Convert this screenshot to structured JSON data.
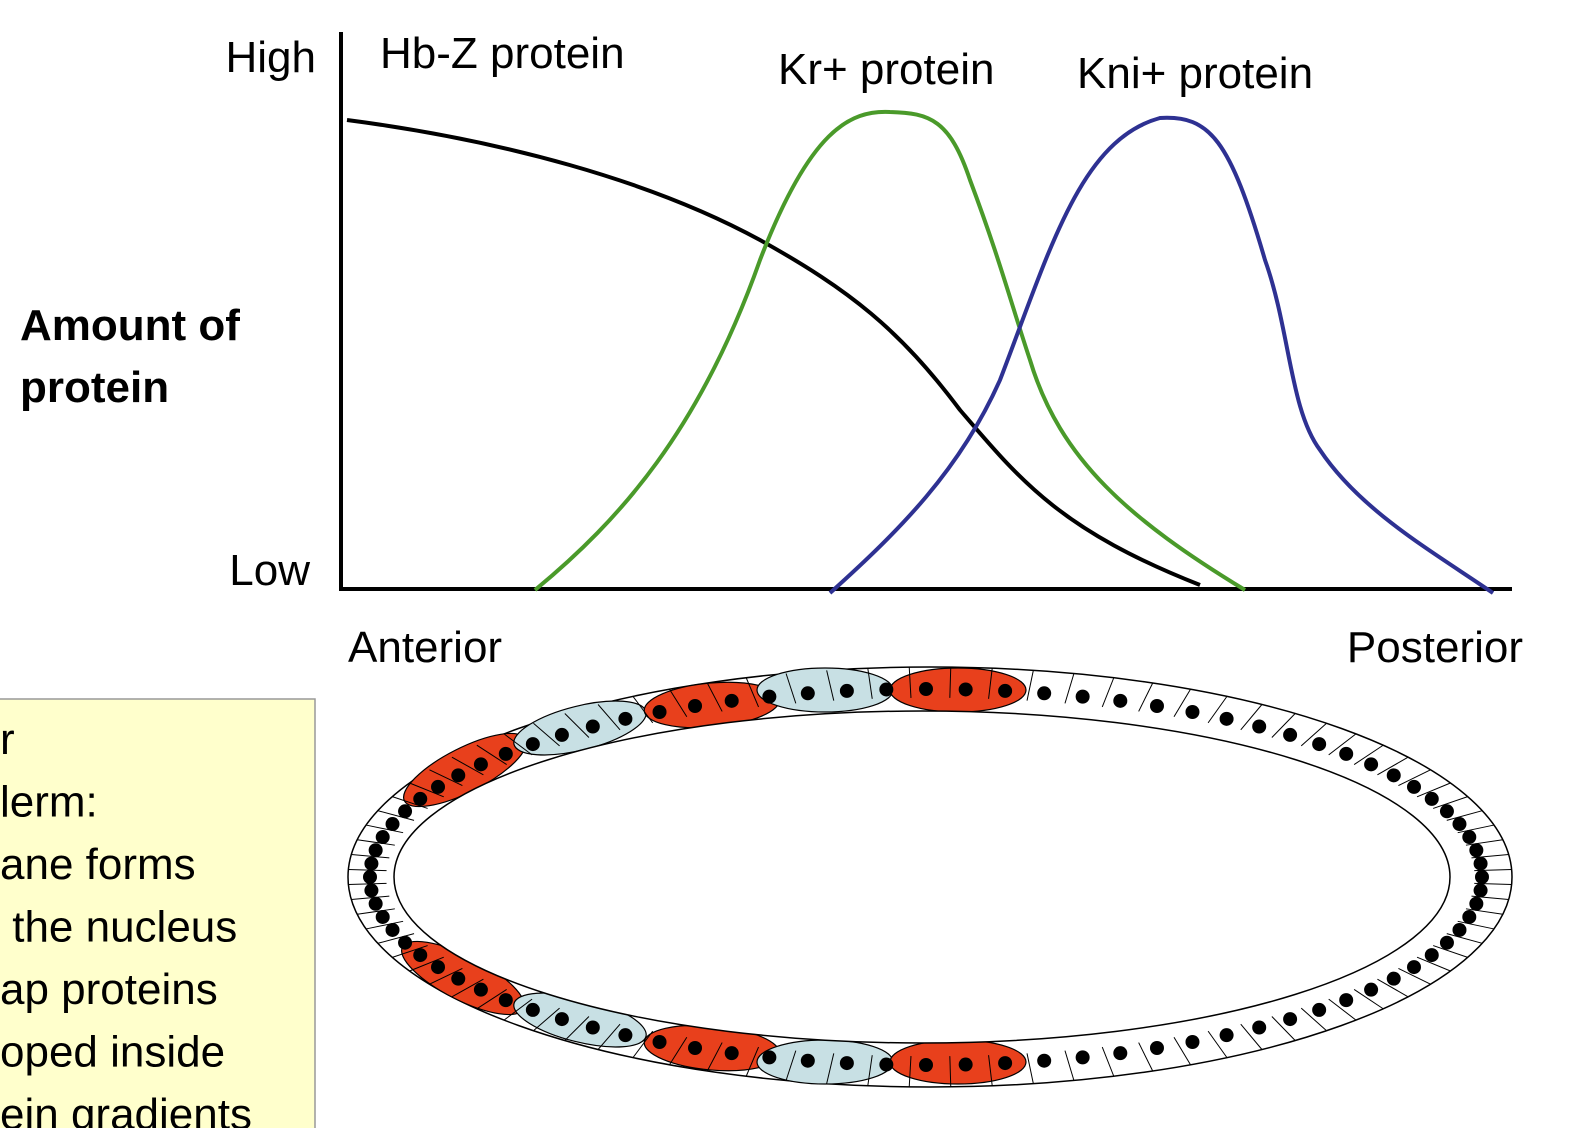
{
  "axis": {
    "high": "High",
    "low": "Low",
    "y_label": [
      "Amount of",
      "protein"
    ],
    "anterior": "Anterior",
    "posterior": "Posterior"
  },
  "curves": {
    "hb": "Hb-Z protein",
    "kr": "Kr+ protein",
    "kni": "Kni+ protein"
  },
  "note": {
    "lines": [
      "r",
      "lerm:",
      "ane forms",
      " the nucleus",
      "ap proteins",
      "oped inside",
      "ein gradients"
    ]
  }
}
